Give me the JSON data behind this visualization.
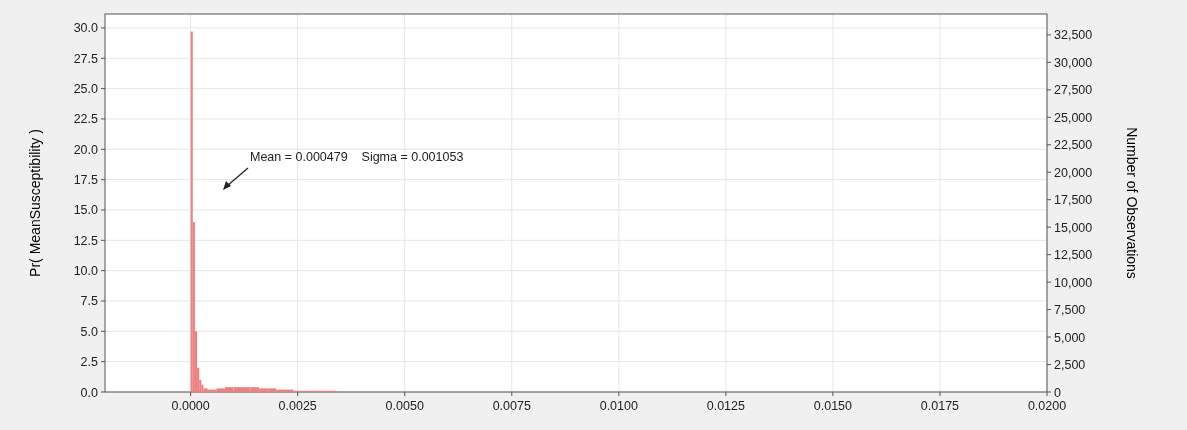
{
  "chart_data": {
    "type": "histogram",
    "ylabel": "Pr( MeanSusceptibility )",
    "y2label": "Number of Observations",
    "bins": [
      0,
      5e-05,
      0.0001,
      0.00015,
      0.0002,
      0.00025,
      0.0003,
      0.0004,
      0.0005,
      0.0006,
      0.0008,
      0.001,
      0.0012,
      0.0014,
      0.0016,
      0.0018,
      0.002,
      0.0022,
      0.0024,
      0.0026,
      0.0028,
      0.003,
      0.0032,
      0.0034
    ],
    "values": [
      29.7,
      14,
      5,
      2,
      1,
      0.6,
      0.3,
      0.2,
      0.2,
      0.3,
      0.4,
      0.4,
      0.4,
      0.4,
      0.3,
      0.3,
      0.2,
      0.2,
      0.1,
      0.1,
      0.1,
      0.1,
      0.1
    ],
    "color": "#f08080",
    "xlim": [
      -0.002,
      0.02
    ],
    "xticks": [
      {
        "value": 0,
        "label": "0.0000"
      },
      {
        "value": 0.0025,
        "label": "0.0025"
      },
      {
        "value": 0.005,
        "label": "0.0050"
      },
      {
        "value": 0.0075,
        "label": "0.0075"
      },
      {
        "value": 0.01,
        "label": "0.0100"
      },
      {
        "value": 0.0125,
        "label": "0.0125"
      },
      {
        "value": 0.015,
        "label": "0.0150"
      },
      {
        "value": 0.0175,
        "label": "0.0175"
      },
      {
        "value": 0.02,
        "label": "0.0200"
      }
    ],
    "ylim": [
      0,
      31.15
    ],
    "yticks": [
      {
        "value": 0,
        "label": "0.0"
      },
      {
        "value": 2.5,
        "label": "2.5"
      },
      {
        "value": 5,
        "label": "5.0"
      },
      {
        "value": 7.5,
        "label": "7.5"
      },
      {
        "value": 10,
        "label": "10.0"
      },
      {
        "value": 12.5,
        "label": "12.5"
      },
      {
        "value": 15,
        "label": "15.0"
      },
      {
        "value": 17.5,
        "label": "17.5"
      },
      {
        "value": 20,
        "label": "20.0"
      },
      {
        "value": 22.5,
        "label": "22.5"
      },
      {
        "value": 25,
        "label": "25.0"
      },
      {
        "value": 27.5,
        "label": "27.5"
      },
      {
        "value": 30,
        "label": "30.0"
      }
    ],
    "y2lim": [
      0,
      34400
    ],
    "y2ticks": [
      0,
      {
        "value": 2500,
        "label": "2,500"
      },
      {
        "value": 5000,
        "label": "5,000"
      },
      {
        "value": 7500,
        "label": "7,500"
      },
      {
        "value": 10000,
        "label": "10,000"
      },
      {
        "value": 12500,
        "label": "12,500"
      },
      {
        "value": 15000,
        "label": "15,000"
      },
      {
        "value": 17500,
        "label": "17,500"
      },
      {
        "value": 20000,
        "label": "20,000"
      },
      {
        "value": 22500,
        "label": "22,500"
      },
      {
        "value": 25000,
        "label": "25,000"
      },
      {
        "value": 27500,
        "label": "27,500"
      },
      {
        "value": 30000,
        "label": "30,000"
      },
      {
        "value": 32500,
        "label": "32,500"
      }
    ],
    "annotations": [
      "Mean = 0.000479    Sigma = 0.001053"
    ],
    "grid": true
  }
}
